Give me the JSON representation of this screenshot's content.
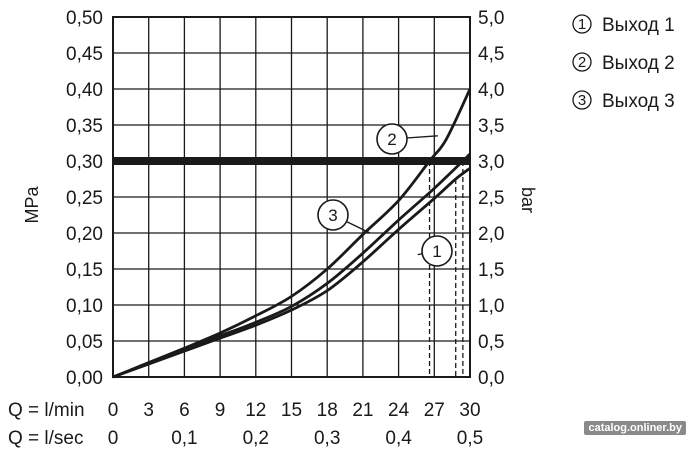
{
  "chart_data": {
    "type": "line",
    "y_left": {
      "label": "MPa",
      "range": [
        0,
        0.5
      ],
      "ticks": [
        "0,00",
        "0,05",
        "0,10",
        "0,15",
        "0,20",
        "0,25",
        "0,30",
        "0,35",
        "0,40",
        "0,45",
        "0,50"
      ]
    },
    "y_right": {
      "label": "bar",
      "range": [
        0,
        5
      ],
      "ticks": [
        "0,0",
        "0,5",
        "1,0",
        "1,5",
        "2,0",
        "2,5",
        "3,0",
        "3,5",
        "4,0",
        "4,5",
        "5,0"
      ]
    },
    "x": {
      "range": [
        0,
        30
      ],
      "row_lmin_label": "Q = l/min",
      "lmin_ticks": [
        {
          "value": 0,
          "label": "0"
        },
        {
          "value": 3,
          "label": "3"
        },
        {
          "value": 6,
          "label": "6"
        },
        {
          "value": 9,
          "label": "9"
        },
        {
          "value": 12,
          "label": "12"
        },
        {
          "value": 15,
          "label": "15"
        },
        {
          "value": 18,
          "label": "18"
        },
        {
          "value": 21,
          "label": "21"
        },
        {
          "value": 24,
          "label": "24"
        },
        {
          "value": 27,
          "label": "27"
        },
        {
          "value": 30,
          "label": "30"
        }
      ],
      "row_lsec_label": "Q = l/sec",
      "lsec_ticks": [
        {
          "value": 0,
          "label": "0"
        },
        {
          "value": 6,
          "label": "0,1"
        },
        {
          "value": 12,
          "label": "0,2"
        },
        {
          "value": 18,
          "label": "0,3"
        },
        {
          "value": 24,
          "label": "0,4"
        },
        {
          "value": 30,
          "label": "0,5"
        }
      ]
    },
    "grid": true,
    "reference_line": {
      "y": 0.3
    },
    "series": [
      {
        "name": "Выход 1",
        "callout": "1",
        "x": [
          0,
          3,
          6,
          9,
          12,
          15,
          18,
          21,
          24,
          27,
          28.8,
          30
        ],
        "y": [
          0,
          0.018,
          0.036,
          0.054,
          0.072,
          0.093,
          0.12,
          0.16,
          0.205,
          0.248,
          0.275,
          0.29
        ]
      },
      {
        "name": "Выход 2",
        "callout": "2",
        "x": [
          0,
          3,
          6,
          9,
          12,
          15,
          18,
          21,
          24,
          26.6,
          28,
          30
        ],
        "y": [
          0,
          0.02,
          0.04,
          0.061,
          0.085,
          0.112,
          0.15,
          0.198,
          0.245,
          0.3,
          0.33,
          0.4
        ]
      },
      {
        "name": "Выход 3",
        "callout": "3",
        "x": [
          0,
          3,
          6,
          9,
          12,
          15,
          18,
          21,
          24,
          27,
          29.4,
          30
        ],
        "y": [
          0,
          0.019,
          0.038,
          0.057,
          0.076,
          0.098,
          0.13,
          0.172,
          0.218,
          0.262,
          0.3,
          0.31
        ]
      }
    ],
    "drop_lines": [
      {
        "x": 26.6,
        "y": 0.3
      },
      {
        "x": 28.8,
        "y": 0.275
      },
      {
        "x": 29.4,
        "y": 0.3
      }
    ],
    "legend": {
      "placement": "top-right",
      "items": [
        {
          "num": "1",
          "label": "Выход 1"
        },
        {
          "num": "2",
          "label": "Выход 2"
        },
        {
          "num": "3",
          "label": "Выход 3"
        }
      ]
    }
  },
  "watermark": "catalog.onliner.by"
}
